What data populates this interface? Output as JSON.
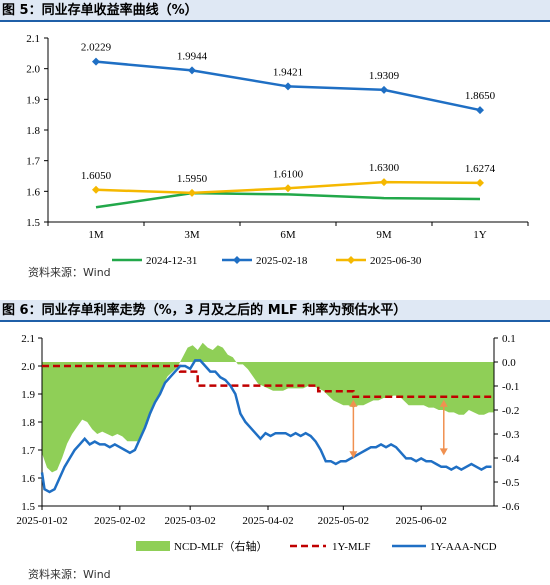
{
  "figures": [
    {
      "title": "图 5：同业存单收益率曲线（%）",
      "source": "资料来源：Wind"
    },
    {
      "title": "图 6：同业存单利率走势（%，3 月及之后的 MLF 利率为预估水平）",
      "source": "资料来源：Wind"
    }
  ],
  "chart_data": [
    {
      "type": "line",
      "title": "图 5：同业存单收益率曲线（%）",
      "categories": [
        "1M",
        "3M",
        "6M",
        "9M",
        "1Y"
      ],
      "ylim": [
        1.5,
        2.1
      ],
      "yticks": [
        "1.5",
        "1.6",
        "1.7",
        "1.8",
        "1.9",
        "2.0",
        "2.1"
      ],
      "legend_position": "bottom",
      "grid": false,
      "series": [
        {
          "name": "2024-12-31",
          "color": "#22a84a",
          "marker": "none",
          "values": [
            1.548,
            1.594,
            1.59,
            1.578,
            1.575
          ],
          "labels": []
        },
        {
          "name": "2025-02-18",
          "color": "#1f6fc4",
          "marker": "diamond",
          "values": [
            2.0229,
            1.9944,
            1.9421,
            1.9309,
            1.865
          ],
          "labels": [
            "2.0229",
            "1.9944",
            "1.9421",
            "1.9309",
            "1.8650"
          ]
        },
        {
          "name": "2025-06-30",
          "color": "#f5b800",
          "marker": "diamond",
          "values": [
            1.605,
            1.595,
            1.61,
            1.63,
            1.6274
          ],
          "labels": [
            "1.6050",
            "1.5950",
            "1.6100",
            "1.6300",
            "1.6274"
          ]
        }
      ]
    },
    {
      "type": "line",
      "title": "图 6：同业存单利率走势（%，3 月及之后的 MLF 利率为预估水平）",
      "x_tick_labels": [
        "2025-01-02",
        "2025-02-02",
        "2025-03-02",
        "2025-04-02",
        "2025-05-02",
        "2025-06-02"
      ],
      "x_tick_days": [
        0,
        31,
        59,
        90,
        120,
        151
      ],
      "x_range_days": [
        0,
        180
      ],
      "ylim": [
        1.5,
        2.1
      ],
      "yticks": [
        "1.5",
        "1.6",
        "1.7",
        "1.8",
        "1.9",
        "2.0",
        "2.1"
      ],
      "y2lim": [
        -0.6,
        0.1
      ],
      "y2ticks": [
        "-0.6",
        "-0.5",
        "-0.4",
        "-0.3",
        "-0.2",
        "-0.1",
        "0.0",
        "0.1"
      ],
      "legend_position": "bottom",
      "grid": false,
      "series": [
        {
          "name": "NCD-MLF（右轴）",
          "type": "area",
          "axis": "right",
          "color": "#8fcf57",
          "points": [
            [
              0,
              -0.38
            ],
            [
              2,
              -0.44
            ],
            [
              4,
              -0.46
            ],
            [
              6,
              -0.45
            ],
            [
              8,
              -0.4
            ],
            [
              10,
              -0.34
            ],
            [
              12,
              -0.3
            ],
            [
              14,
              -0.27
            ],
            [
              16,
              -0.24
            ],
            [
              18,
              -0.25
            ],
            [
              20,
              -0.28
            ],
            [
              22,
              -0.3
            ],
            [
              24,
              -0.29
            ],
            [
              26,
              -0.3
            ],
            [
              28,
              -0.31
            ],
            [
              30,
              -0.3
            ],
            [
              32,
              -0.31
            ],
            [
              34,
              -0.33
            ],
            [
              36,
              -0.33
            ],
            [
              38,
              -0.33
            ],
            [
              40,
              -0.3
            ],
            [
              42,
              -0.26
            ],
            [
              44,
              -0.2
            ],
            [
              46,
              -0.15
            ],
            [
              48,
              -0.1
            ],
            [
              50,
              -0.06
            ],
            [
              52,
              -0.04
            ],
            [
              54,
              -0.02
            ],
            [
              56,
              0.02
            ],
            [
              58,
              0.06
            ],
            [
              60,
              0.07
            ],
            [
              62,
              0.05
            ],
            [
              64,
              0.08
            ],
            [
              66,
              0.06
            ],
            [
              68,
              0.05
            ],
            [
              70,
              0.07
            ],
            [
              72,
              0.06
            ],
            [
              74,
              0.03
            ],
            [
              76,
              0.02
            ],
            [
              78,
              -0.01
            ],
            [
              80,
              -0.01
            ],
            [
              82,
              -0.03
            ],
            [
              84,
              -0.06
            ],
            [
              86,
              -0.09
            ],
            [
              88,
              -0.1
            ],
            [
              90,
              -0.11
            ],
            [
              92,
              -0.12
            ],
            [
              94,
              -0.12
            ],
            [
              96,
              -0.12
            ],
            [
              98,
              -0.11
            ],
            [
              100,
              -0.11
            ],
            [
              102,
              -0.11
            ],
            [
              104,
              -0.11
            ],
            [
              106,
              -0.1
            ],
            [
              108,
              -0.1
            ],
            [
              110,
              -0.11
            ],
            [
              112,
              -0.12
            ],
            [
              114,
              -0.14
            ],
            [
              116,
              -0.16
            ],
            [
              118,
              -0.17
            ],
            [
              120,
              -0.18
            ],
            [
              122,
              -0.18
            ],
            [
              124,
              -0.19
            ],
            [
              126,
              -0.18
            ],
            [
              128,
              -0.18
            ],
            [
              130,
              -0.17
            ],
            [
              132,
              -0.16
            ],
            [
              134,
              -0.16
            ],
            [
              136,
              -0.15
            ],
            [
              138,
              -0.15
            ],
            [
              140,
              -0.14
            ],
            [
              142,
              -0.14
            ],
            [
              144,
              -0.16
            ],
            [
              146,
              -0.18
            ],
            [
              148,
              -0.18
            ],
            [
              150,
              -0.18
            ],
            [
              152,
              -0.18
            ],
            [
              154,
              -0.19
            ],
            [
              156,
              -0.19
            ],
            [
              158,
              -0.2
            ],
            [
              160,
              -0.2
            ],
            [
              162,
              -0.21
            ],
            [
              164,
              -0.21
            ],
            [
              166,
              -0.22
            ],
            [
              168,
              -0.22
            ],
            [
              170,
              -0.2
            ],
            [
              172,
              -0.21
            ],
            [
              174,
              -0.22
            ],
            [
              176,
              -0.22
            ],
            [
              178,
              -0.21
            ],
            [
              180,
              -0.21
            ]
          ]
        },
        {
          "name": "1Y-MLF",
          "type": "line",
          "axis": "left",
          "color": "#c00000",
          "dash": true,
          "points": [
            [
              0,
              2.0
            ],
            [
              55,
              2.0
            ],
            [
              55,
              1.98
            ],
            [
              62,
              1.98
            ],
            [
              62,
              1.93
            ],
            [
              110,
              1.93
            ],
            [
              110,
              1.91
            ],
            [
              124,
              1.91
            ],
            [
              124,
              1.89
            ],
            [
              180,
              1.89
            ]
          ]
        },
        {
          "name": "1Y-AAA-NCD",
          "type": "line",
          "axis": "left",
          "color": "#1f6fc4",
          "points": [
            [
              0,
              1.62
            ],
            [
              1,
              1.56
            ],
            [
              3,
              1.55
            ],
            [
              5,
              1.56
            ],
            [
              7,
              1.6
            ],
            [
              9,
              1.64
            ],
            [
              11,
              1.67
            ],
            [
              13,
              1.7
            ],
            [
              15,
              1.72
            ],
            [
              17,
              1.74
            ],
            [
              19,
              1.72
            ],
            [
              21,
              1.73
            ],
            [
              23,
              1.72
            ],
            [
              25,
              1.72
            ],
            [
              27,
              1.71
            ],
            [
              29,
              1.72
            ],
            [
              31,
              1.71
            ],
            [
              33,
              1.7
            ],
            [
              35,
              1.69
            ],
            [
              37,
              1.7
            ],
            [
              39,
              1.74
            ],
            [
              41,
              1.78
            ],
            [
              43,
              1.83
            ],
            [
              45,
              1.87
            ],
            [
              47,
              1.9
            ],
            [
              49,
              1.94
            ],
            [
              51,
              1.96
            ],
            [
              53,
              1.98
            ],
            [
              55,
              2.0
            ],
            [
              57,
              2.0
            ],
            [
              59,
              1.99
            ],
            [
              61,
              2.02
            ],
            [
              63,
              2.02
            ],
            [
              65,
              2.0
            ],
            [
              67,
              1.98
            ],
            [
              69,
              1.98
            ],
            [
              71,
              1.96
            ],
            [
              73,
              1.95
            ],
            [
              75,
              1.93
            ],
            [
              77,
              1.9
            ],
            [
              79,
              1.83
            ],
            [
              81,
              1.8
            ],
            [
              83,
              1.78
            ],
            [
              85,
              1.76
            ],
            [
              87,
              1.74
            ],
            [
              89,
              1.76
            ],
            [
              91,
              1.75
            ],
            [
              93,
              1.76
            ],
            [
              95,
              1.76
            ],
            [
              97,
              1.76
            ],
            [
              99,
              1.75
            ],
            [
              101,
              1.76
            ],
            [
              103,
              1.75
            ],
            [
              105,
              1.76
            ],
            [
              107,
              1.75
            ],
            [
              109,
              1.73
            ],
            [
              111,
              1.7
            ],
            [
              113,
              1.66
            ],
            [
              115,
              1.66
            ],
            [
              117,
              1.65
            ],
            [
              119,
              1.66
            ],
            [
              121,
              1.66
            ],
            [
              123,
              1.67
            ],
            [
              125,
              1.68
            ],
            [
              127,
              1.69
            ],
            [
              129,
              1.7
            ],
            [
              131,
              1.71
            ],
            [
              133,
              1.71
            ],
            [
              135,
              1.72
            ],
            [
              137,
              1.71
            ],
            [
              139,
              1.72
            ],
            [
              141,
              1.71
            ],
            [
              143,
              1.69
            ],
            [
              145,
              1.67
            ],
            [
              147,
              1.67
            ],
            [
              149,
              1.66
            ],
            [
              151,
              1.67
            ],
            [
              153,
              1.66
            ],
            [
              155,
              1.66
            ],
            [
              157,
              1.65
            ],
            [
              159,
              1.64
            ],
            [
              161,
              1.64
            ],
            [
              163,
              1.63
            ],
            [
              165,
              1.64
            ],
            [
              167,
              1.63
            ],
            [
              169,
              1.64
            ],
            [
              171,
              1.65
            ],
            [
              173,
              1.64
            ],
            [
              175,
              1.63
            ],
            [
              177,
              1.64
            ],
            [
              179,
              1.64
            ]
          ]
        }
      ],
      "arrows": [
        [
          124,
          1.89,
          1.66
        ],
        [
          160,
          1.89,
          1.67
        ]
      ],
      "arrow_color": "#f09050"
    }
  ]
}
